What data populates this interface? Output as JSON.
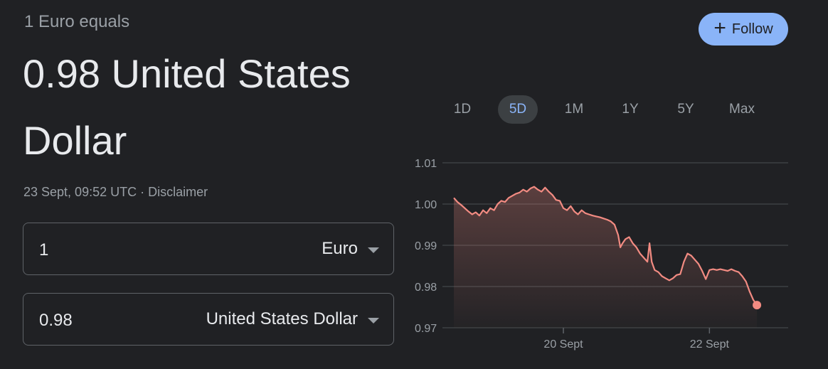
{
  "header": {
    "subtitle": "1 Euro equals",
    "line1": "0.98 United States",
    "line2": "Dollar"
  },
  "meta": {
    "timestamp": "23 Sept, 09:52 UTC",
    "separator": " · ",
    "disclaimer": "Disclaimer"
  },
  "converter": {
    "from": {
      "value": "1",
      "currency": "Euro"
    },
    "to": {
      "value": "0.98",
      "currency": "United States Dollar"
    }
  },
  "follow": {
    "label": "Follow",
    "icon": "plus-icon"
  },
  "ranges": [
    "1D",
    "5D",
    "1M",
    "1Y",
    "5Y",
    "Max"
  ],
  "active_range": "5D",
  "colors": {
    "line": "#f28b82",
    "accent": "#8ab4f8",
    "bg": "#202124"
  },
  "chart_data": {
    "type": "line",
    "ylim": [
      0.97,
      1.01
    ],
    "y_ticks": [
      "1.01",
      "1.00",
      "0.99",
      "0.98",
      "0.97"
    ],
    "x_ticks": [
      {
        "label": "20 Sept",
        "x": 1.5
      },
      {
        "label": "22 Sept",
        "x": 3.5
      }
    ],
    "xlim": [
      0,
      4.5
    ],
    "series": [
      {
        "values": [
          [
            0.0,
            1.0015
          ],
          [
            0.05,
            1.0005
          ],
          [
            0.1,
            0.9998
          ],
          [
            0.15,
            0.999
          ],
          [
            0.2,
            0.9982
          ],
          [
            0.25,
            0.9975
          ],
          [
            0.3,
            0.998
          ],
          [
            0.35,
            0.9972
          ],
          [
            0.4,
            0.9985
          ],
          [
            0.45,
            0.9978
          ],
          [
            0.5,
            0.999
          ],
          [
            0.55,
            0.9985
          ],
          [
            0.6,
            1.0
          ],
          [
            0.65,
            1.0008
          ],
          [
            0.7,
            1.0005
          ],
          [
            0.75,
            1.0015
          ],
          [
            0.8,
            1.002
          ],
          [
            0.85,
            1.0025
          ],
          [
            0.9,
            1.0028
          ],
          [
            0.95,
            1.0035
          ],
          [
            1.0,
            1.003
          ],
          [
            1.05,
            1.0038
          ],
          [
            1.1,
            1.0042
          ],
          [
            1.15,
            1.0035
          ],
          [
            1.2,
            1.003
          ],
          [
            1.25,
            1.004
          ],
          [
            1.3,
            1.003
          ],
          [
            1.35,
            1.0022
          ],
          [
            1.4,
            1.001
          ],
          [
            1.45,
            1.0008
          ],
          [
            1.5,
            0.999
          ],
          [
            1.55,
            0.9985
          ],
          [
            1.6,
            0.9995
          ],
          [
            1.65,
            0.9982
          ],
          [
            1.7,
            0.9975
          ],
          [
            1.75,
            0.9985
          ],
          [
            1.8,
            0.9978
          ],
          [
            1.85,
            0.9975
          ],
          [
            1.9,
            0.9972
          ],
          [
            1.95,
            0.997
          ],
          [
            2.0,
            0.9968
          ],
          [
            2.05,
            0.9965
          ],
          [
            2.1,
            0.9962
          ],
          [
            2.15,
            0.9958
          ],
          [
            2.2,
            0.995
          ],
          [
            2.25,
            0.9925
          ],
          [
            2.28,
            0.9895
          ],
          [
            2.31,
            0.9905
          ],
          [
            2.35,
            0.9915
          ],
          [
            2.4,
            0.992
          ],
          [
            2.45,
            0.9905
          ],
          [
            2.5,
            0.9895
          ],
          [
            2.55,
            0.988
          ],
          [
            2.6,
            0.987
          ],
          [
            2.65,
            0.986
          ],
          [
            2.68,
            0.9905
          ],
          [
            2.71,
            0.986
          ],
          [
            2.75,
            0.984
          ],
          [
            2.8,
            0.9835
          ],
          [
            2.85,
            0.9825
          ],
          [
            2.9,
            0.982
          ],
          [
            2.95,
            0.9815
          ],
          [
            3.0,
            0.982
          ],
          [
            3.05,
            0.9828
          ],
          [
            3.1,
            0.983
          ],
          [
            3.15,
            0.986
          ],
          [
            3.2,
            0.988
          ],
          [
            3.25,
            0.9875
          ],
          [
            3.3,
            0.9865
          ],
          [
            3.35,
            0.9855
          ],
          [
            3.4,
            0.9838
          ],
          [
            3.45,
            0.9818
          ],
          [
            3.5,
            0.984
          ],
          [
            3.55,
            0.9842
          ],
          [
            3.6,
            0.984
          ],
          [
            3.65,
            0.9842
          ],
          [
            3.7,
            0.984
          ],
          [
            3.75,
            0.9838
          ],
          [
            3.8,
            0.9842
          ],
          [
            3.85,
            0.9838
          ],
          [
            3.9,
            0.9835
          ],
          [
            3.95,
            0.9825
          ],
          [
            4.0,
            0.9812
          ],
          [
            4.05,
            0.9788
          ],
          [
            4.1,
            0.9768
          ],
          [
            4.15,
            0.9755
          ]
        ]
      }
    ]
  }
}
